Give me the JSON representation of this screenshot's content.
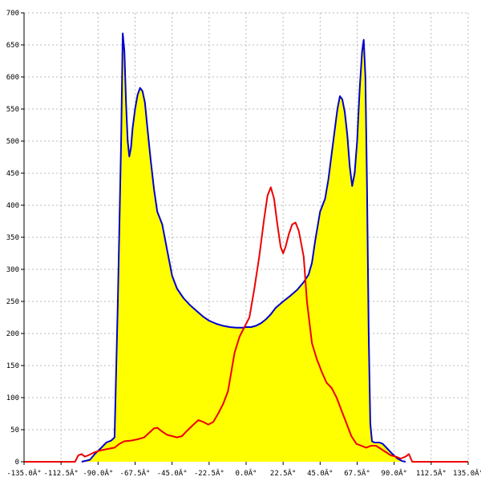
{
  "chart_data": {
    "type": "area",
    "title": "",
    "xlabel": "",
    "ylabel": "",
    "xlim": [
      -135,
      135
    ],
    "ylim": [
      0,
      700
    ],
    "grid": true,
    "legend": "none",
    "x_ticks": [
      -135,
      -112.5,
      -90,
      -67.5,
      -45,
      -22.5,
      0,
      22.5,
      45,
      67.5,
      90,
      112.5,
      135
    ],
    "x_tick_labels": [
      "-135.0Â°",
      "-112.5Â°",
      "-90.0Â°",
      "-67.5Â°",
      "-45.0Â°",
      "-22.5Â°",
      "0.0Â°",
      "22.5Â°",
      "45.0Â°",
      "67.5Â°",
      "90.0Â°",
      "112.5Â°",
      "135.0Â°"
    ],
    "y_ticks": [
      0,
      50,
      100,
      150,
      200,
      250,
      300,
      350,
      400,
      450,
      500,
      550,
      600,
      650,
      700
    ],
    "series": [
      {
        "color": "#0000cc",
        "fill": "#ffff00",
        "points": [
          [
            -100,
            0
          ],
          [
            -95,
            3
          ],
          [
            -92,
            12
          ],
          [
            -88,
            22
          ],
          [
            -85,
            30
          ],
          [
            -82,
            33
          ],
          [
            -80,
            38
          ],
          [
            -78,
            250
          ],
          [
            -76,
            500
          ],
          [
            -75,
            668
          ],
          [
            -74,
            640
          ],
          [
            -73,
            560
          ],
          [
            -72,
            500
          ],
          [
            -71,
            476
          ],
          [
            -70,
            490
          ],
          [
            -69,
            520
          ],
          [
            -67.5,
            550
          ],
          [
            -66,
            572
          ],
          [
            -64.5,
            583
          ],
          [
            -63,
            578
          ],
          [
            -61.5,
            560
          ],
          [
            -60,
            520
          ],
          [
            -58,
            470
          ],
          [
            -56,
            425
          ],
          [
            -54,
            390
          ],
          [
            -51,
            370
          ],
          [
            -48,
            330
          ],
          [
            -45,
            290
          ],
          [
            -42,
            270
          ],
          [
            -38,
            255
          ],
          [
            -34,
            244
          ],
          [
            -30,
            235
          ],
          [
            -26,
            226
          ],
          [
            -22.5,
            220
          ],
          [
            -18,
            215
          ],
          [
            -14,
            212
          ],
          [
            -10,
            210
          ],
          [
            -6,
            209
          ],
          [
            -2,
            209
          ],
          [
            0,
            210
          ],
          [
            3,
            210
          ],
          [
            6,
            212
          ],
          [
            9,
            216
          ],
          [
            12,
            222
          ],
          [
            15,
            230
          ],
          [
            18,
            240
          ],
          [
            22.5,
            250
          ],
          [
            27,
            259
          ],
          [
            31,
            268
          ],
          [
            35,
            280
          ],
          [
            38,
            292
          ],
          [
            40,
            310
          ],
          [
            42,
            345
          ],
          [
            45,
            390
          ],
          [
            48,
            410
          ],
          [
            50,
            440
          ],
          [
            52,
            480
          ],
          [
            54,
            520
          ],
          [
            55.5,
            550
          ],
          [
            57,
            570
          ],
          [
            58.5,
            565
          ],
          [
            60,
            545
          ],
          [
            61.5,
            510
          ],
          [
            63,
            460
          ],
          [
            64.5,
            430
          ],
          [
            66,
            450
          ],
          [
            67.5,
            500
          ],
          [
            69,
            580
          ],
          [
            70.5,
            640
          ],
          [
            71.5,
            658
          ],
          [
            72.5,
            600
          ],
          [
            73.5,
            430
          ],
          [
            74.5,
            200
          ],
          [
            75.5,
            60
          ],
          [
            76.5,
            32
          ],
          [
            78,
            30
          ],
          [
            81,
            30
          ],
          [
            83,
            28
          ],
          [
            86,
            20
          ],
          [
            89,
            12
          ],
          [
            92,
            5
          ],
          [
            95,
            1
          ],
          [
            97,
            0
          ]
        ]
      },
      {
        "color": "#ee0000",
        "points": [
          [
            -135,
            0
          ],
          [
            -104,
            0
          ],
          [
            -102,
            10
          ],
          [
            -100,
            12
          ],
          [
            -98,
            8
          ],
          [
            -96,
            10
          ],
          [
            -92,
            15
          ],
          [
            -88,
            18
          ],
          [
            -84,
            20
          ],
          [
            -80,
            22
          ],
          [
            -77,
            28
          ],
          [
            -74,
            32
          ],
          [
            -70,
            33
          ],
          [
            -66,
            35
          ],
          [
            -62,
            38
          ],
          [
            -59,
            45
          ],
          [
            -56,
            52
          ],
          [
            -54,
            53
          ],
          [
            -51,
            47
          ],
          [
            -48,
            42
          ],
          [
            -45,
            40
          ],
          [
            -42,
            38
          ],
          [
            -39,
            40
          ],
          [
            -36,
            48
          ],
          [
            -32,
            58
          ],
          [
            -29,
            65
          ],
          [
            -26,
            62
          ],
          [
            -23,
            58
          ],
          [
            -20,
            62
          ],
          [
            -17,
            75
          ],
          [
            -14,
            90
          ],
          [
            -11,
            110
          ],
          [
            -9,
            140
          ],
          [
            -7,
            170
          ],
          [
            -4,
            195
          ],
          [
            -1,
            210
          ],
          [
            2,
            225
          ],
          [
            5,
            270
          ],
          [
            8,
            320
          ],
          [
            11,
            380
          ],
          [
            13,
            415
          ],
          [
            15,
            428
          ],
          [
            17,
            410
          ],
          [
            19,
            370
          ],
          [
            21,
            335
          ],
          [
            22.5,
            325
          ],
          [
            24,
            335
          ],
          [
            26,
            355
          ],
          [
            28,
            370
          ],
          [
            30,
            373
          ],
          [
            32,
            360
          ],
          [
            35,
            320
          ],
          [
            37,
            250
          ],
          [
            40,
            185
          ],
          [
            43,
            160
          ],
          [
            46,
            140
          ],
          [
            49,
            123
          ],
          [
            52,
            115
          ],
          [
            55,
            100
          ],
          [
            58,
            80
          ],
          [
            61,
            60
          ],
          [
            64,
            40
          ],
          [
            67,
            28
          ],
          [
            70,
            25
          ],
          [
            73,
            22
          ],
          [
            76,
            25
          ],
          [
            79,
            25
          ],
          [
            82,
            20
          ],
          [
            85,
            15
          ],
          [
            88,
            10
          ],
          [
            91,
            8
          ],
          [
            94,
            5
          ],
          [
            97,
            8
          ],
          [
            99,
            12
          ],
          [
            101,
            0
          ],
          [
            135,
            0
          ]
        ]
      }
    ]
  }
}
